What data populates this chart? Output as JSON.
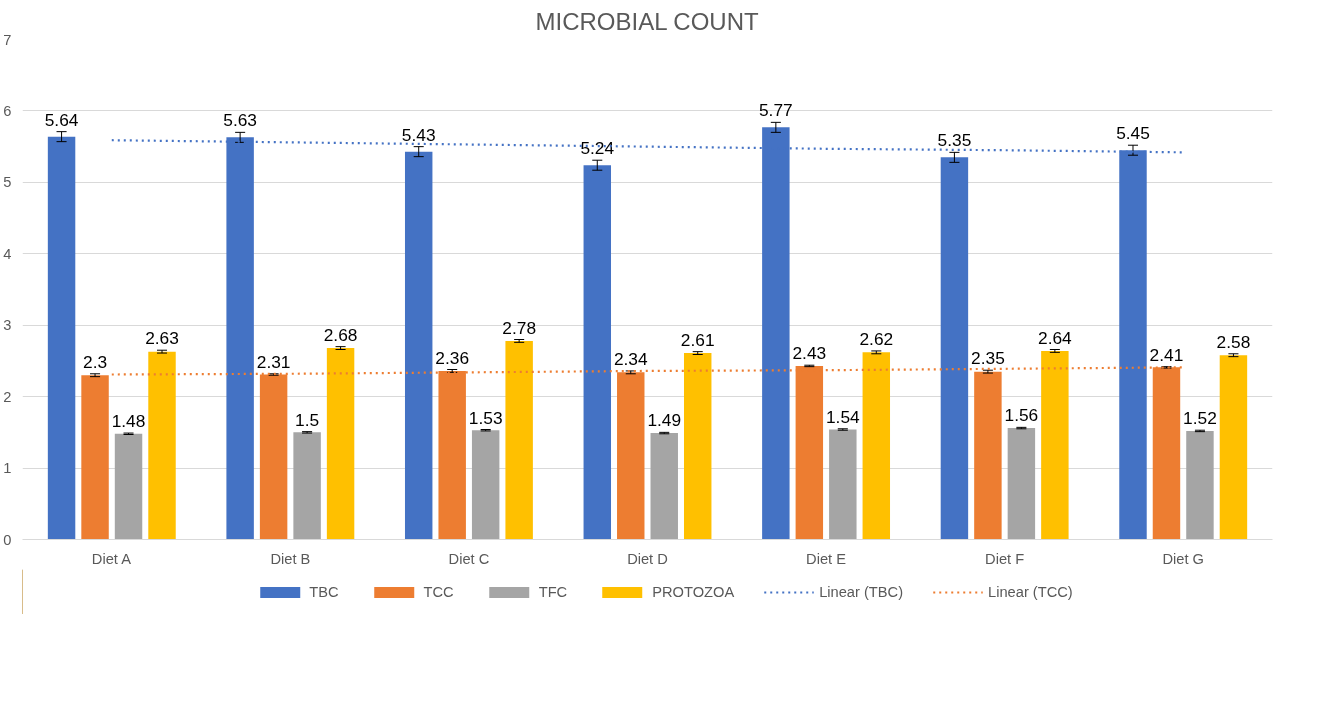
{
  "chart_data": {
    "type": "bar",
    "title": "MICROBIAL COUNT",
    "categories": [
      "Diet A",
      "Diet B",
      "Diet C",
      "Diet D",
      "Diet E",
      "Diet F",
      "Diet G"
    ],
    "series": [
      {
        "name": "TBC",
        "color": "#4472c4",
        "values": [
          5.64,
          5.63,
          5.43,
          5.24,
          5.77,
          5.35,
          5.45
        ],
        "errors": [
          0.07,
          0.07,
          0.07,
          0.07,
          0.07,
          0.07,
          0.07
        ],
        "value_labels": [
          "5.64",
          "5.63",
          "5.43",
          "5.24",
          "5.77",
          "5.35",
          "5.45"
        ]
      },
      {
        "name": "TCC",
        "color": "#ed7d31",
        "values": [
          2.3,
          2.31,
          2.36,
          2.34,
          2.43,
          2.35,
          2.41
        ],
        "errors": [
          0.02,
          0.01,
          0.02,
          0.02,
          0.01,
          0.02,
          0.01
        ],
        "value_labels": [
          "2.3",
          "2.31",
          "2.36",
          "2.34",
          "2.43",
          "2.35",
          "2.41"
        ]
      },
      {
        "name": "TFC",
        "color": "#a5a5a5",
        "values": [
          1.48,
          1.5,
          1.53,
          1.49,
          1.54,
          1.56,
          1.52
        ],
        "errors": [
          0.01,
          0.01,
          0.01,
          0.01,
          0.01,
          0.01,
          0.01
        ],
        "value_labels": [
          "1.48",
          "1.5",
          "1.53",
          "1.49",
          "1.54",
          "1.56",
          "1.52"
        ]
      },
      {
        "name": "PROTOZOA",
        "color": "#ffc000",
        "values": [
          2.63,
          2.68,
          2.78,
          2.61,
          2.62,
          2.64,
          2.58
        ],
        "errors": [
          0.02,
          0.02,
          0.02,
          0.02,
          0.02,
          0.02,
          0.02
        ],
        "value_labels": [
          "2.63",
          "2.68",
          "2.78",
          "2.61",
          "2.62",
          "2.64",
          "2.58"
        ]
      },
      {
        "name": "Linear (TBC)",
        "type": "line",
        "line_style": "dotted",
        "color": "#4472c4",
        "values": [
          5.59,
          5.56,
          5.53,
          5.5,
          5.47,
          5.45,
          5.42
        ]
      },
      {
        "name": "Linear (TCC)",
        "type": "line",
        "line_style": "dotted",
        "color": "#ed7d31",
        "values": [
          2.31,
          2.32,
          2.34,
          2.36,
          2.37,
          2.39,
          2.41
        ]
      }
    ],
    "ylim": [
      0,
      7
    ],
    "yticks": [
      0,
      1,
      2,
      3,
      4,
      5,
      6,
      7
    ],
    "grid": "y",
    "legend": "bottom",
    "marker": "none"
  }
}
